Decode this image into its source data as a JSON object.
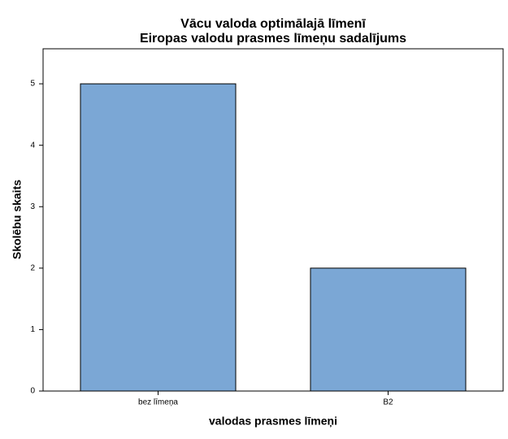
{
  "chart_data": {
    "type": "bar",
    "title": "Vācu valoda optimālajā līmenī",
    "subtitle": "Eiropas valodu prasmes līmeņu sadalījums",
    "x_label": "valodas prasmes līmeņi",
    "y_label": "Skolēbu skaits",
    "categories": [
      "bez līmeņa",
      "B2"
    ],
    "values": [
      5,
      2
    ],
    "color": "#7ba7d5",
    "ylim": [
      0,
      5.57
    ],
    "yticks": [
      0,
      1,
      2,
      3,
      4,
      5
    ],
    "grid": false
  }
}
